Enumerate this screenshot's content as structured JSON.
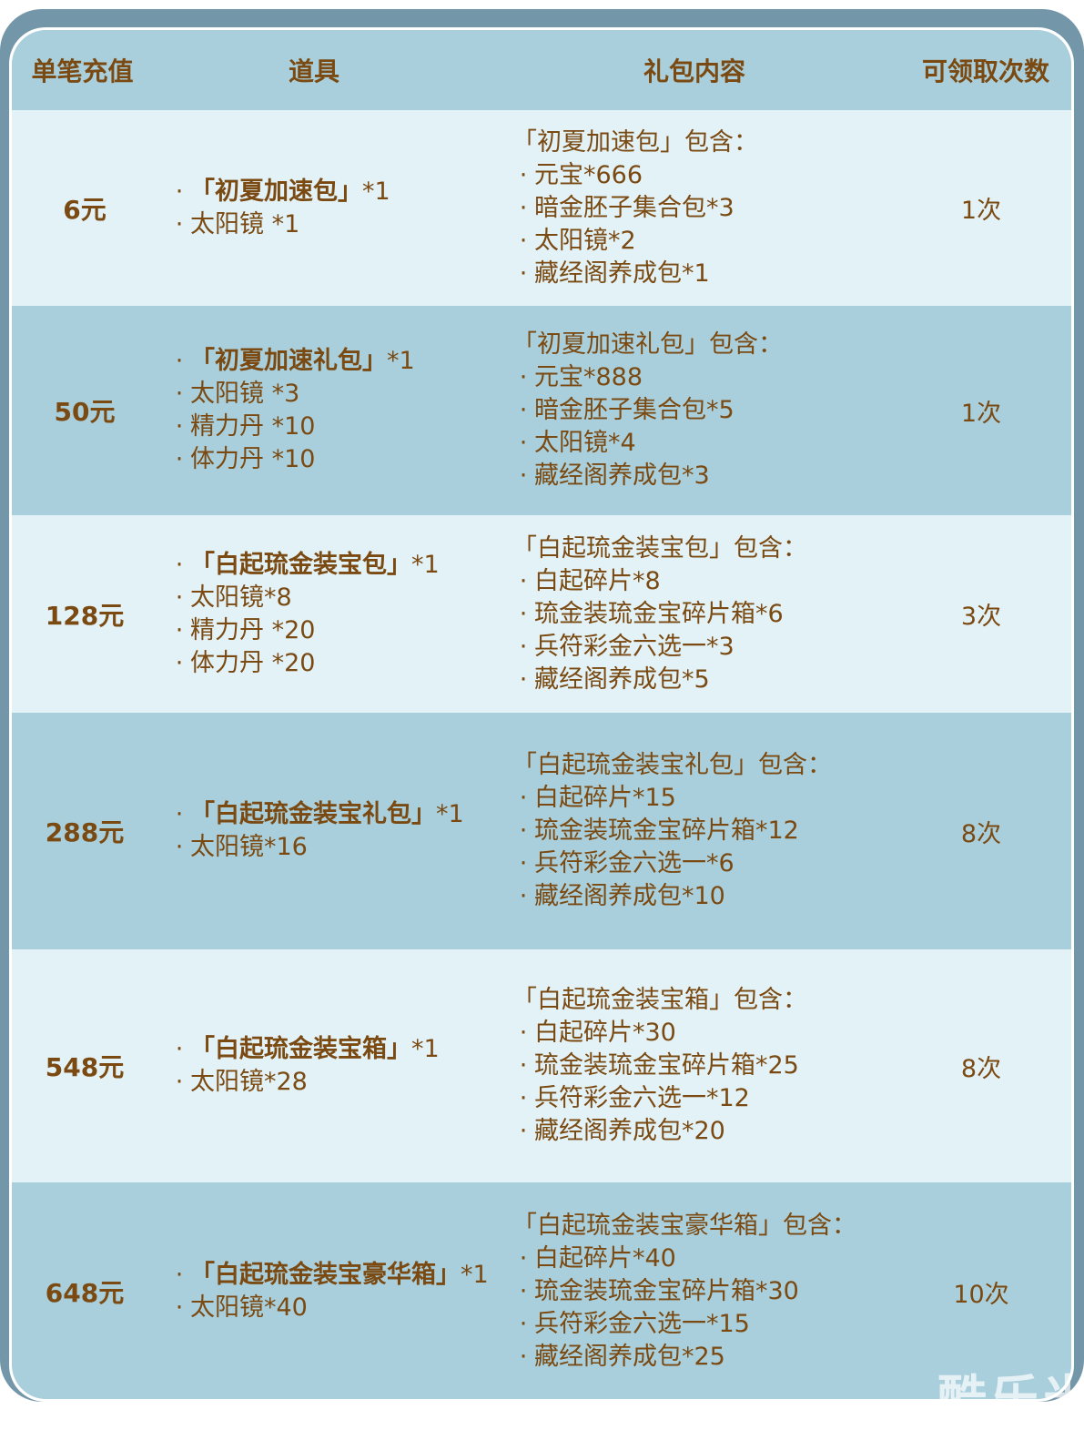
{
  "header": {
    "col1": "单笔充值",
    "col2": "道具",
    "col3": "礼包内容",
    "col4": "可领取次数"
  },
  "bullet": "·",
  "rows": [
    {
      "price": "6元",
      "items": [
        {
          "text": "「初夏加速包」",
          "qty": "*1"
        },
        {
          "text": "太阳镜 *1"
        }
      ],
      "contents_title": "「初夏加速包」包含：",
      "contents": [
        "元宝*666",
        "暗金胚子集合包*3",
        "太阳镜*2",
        "藏经阁养成包*1"
      ],
      "times": "1次"
    },
    {
      "price": "50元",
      "items": [
        {
          "text": "「初夏加速礼包」",
          "qty": "*1"
        },
        {
          "text": "太阳镜 *3"
        },
        {
          "text": "精力丹 *10"
        },
        {
          "text": "体力丹 *10"
        }
      ],
      "contents_title": "「初夏加速礼包」包含：",
      "contents": [
        "元宝*888",
        "暗金胚子集合包*5",
        "太阳镜*4",
        "藏经阁养成包*3"
      ],
      "times": "1次"
    },
    {
      "price": "128元",
      "items": [
        {
          "text": "「白起琉金装宝包」",
          "qty": "*1"
        },
        {
          "text": "太阳镜*8"
        },
        {
          "text": "精力丹 *20"
        },
        {
          "text": "体力丹 *20"
        }
      ],
      "contents_title": "「白起琉金装宝包」包含：",
      "contents": [
        "白起碎片*8",
        "琉金装琉金宝碎片箱*6",
        "兵符彩金六选一*3",
        "藏经阁养成包*5"
      ],
      "times": "3次"
    },
    {
      "price": "288元",
      "items": [
        {
          "text": "「白起琉金装宝礼包」",
          "qty": "*1"
        },
        {
          "text": "太阳镜*16"
        }
      ],
      "contents_title": "「白起琉金装宝礼包」包含：",
      "contents": [
        "白起碎片*15",
        "琉金装琉金宝碎片箱*12",
        "兵符彩金六选一*6",
        "藏经阁养成包*10"
      ],
      "times": "8次"
    },
    {
      "price": "548元",
      "items": [
        {
          "text": "「白起琉金装宝箱」",
          "qty": "*1"
        },
        {
          "text": "太阳镜*28"
        }
      ],
      "contents_title": "「白起琉金装宝箱」包含：",
      "contents": [
        "白起碎片*30",
        "琉金装琉金宝碎片箱*25",
        "兵符彩金六选一*12",
        "藏经阁养成包*20"
      ],
      "times": "8次"
    },
    {
      "price": "648元",
      "items": [
        {
          "text": "「白起琉金装宝豪华箱」",
          "qty": "*1"
        },
        {
          "text": "太阳镜*40"
        }
      ],
      "contents_title": "「白起琉金装宝豪华箱」包含：",
      "contents": [
        "白起碎片*40",
        "琉金装琉金宝碎片箱*30",
        "兵符彩金六选一*15",
        "藏经阁养成包*25"
      ],
      "times": "10次"
    }
  ],
  "watermark": "酷乐米",
  "colors": {
    "frame": "#7396a8",
    "header": "#a9cfdc",
    "row_light": "#e3f2f7",
    "row_dark": "#a9cfdc",
    "text": "#7a4a12"
  }
}
